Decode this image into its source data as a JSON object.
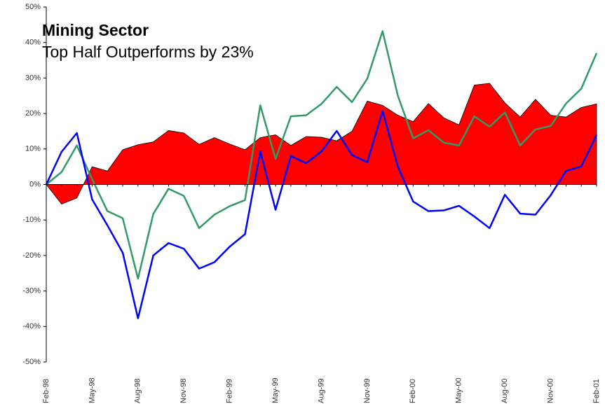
{
  "chart_data": {
    "type": "line",
    "title": "Mining Sector",
    "subtitle": "Top Half Outperforms by 23%",
    "categories": [
      "Feb-98",
      null,
      null,
      "May-98",
      null,
      null,
      "Aug-98",
      null,
      null,
      "Nov-98",
      null,
      null,
      "Feb-99",
      null,
      null,
      "May-99",
      null,
      null,
      "Aug-99",
      null,
      null,
      "Nov-99",
      null,
      null,
      "Feb-00",
      null,
      null,
      "May-00",
      null,
      null,
      "Aug-00",
      null,
      null,
      "Nov-00",
      null,
      null,
      "Feb-01"
    ],
    "series": [
      {
        "type": "area",
        "color": "#ff0000",
        "values": [
          0,
          -5.5,
          -3.8,
          5,
          3.8,
          9.8,
          11.2,
          12,
          15.2,
          14.5,
          11.3,
          13.2,
          11.4,
          9.8,
          13.2,
          14,
          11,
          13.5,
          13.3,
          12.3,
          15,
          23.5,
          22.3,
          19.5,
          17.7,
          22.8,
          18.8,
          16.8,
          28,
          28.5,
          23,
          19,
          24,
          19.5,
          19,
          21.7,
          22.7
        ]
      },
      {
        "type": "line",
        "color": "#339966",
        "values": [
          0,
          3.5,
          11,
          1.5,
          -7.5,
          -9.5,
          -26.5,
          -8.3,
          -1.2,
          -3.2,
          -12.3,
          -8.5,
          -6.1,
          -4.4,
          22.3,
          7.2,
          19.2,
          19.5,
          22.7,
          27.5,
          23.2,
          29.8,
          43.2,
          25,
          13,
          15.3,
          11.8,
          11,
          19.2,
          16.3,
          20.3,
          11,
          15.5,
          16.5,
          22.8,
          27,
          37
        ]
      },
      {
        "type": "line",
        "color": "#0000ff",
        "values": [
          0,
          9.2,
          14.5,
          -4.2,
          -11.5,
          -19.2,
          -37.7,
          -20,
          -16.5,
          -18.1,
          -23.7,
          -21.9,
          -17.5,
          -14,
          9.3,
          -7.1,
          8,
          6,
          9.3,
          15.1,
          8.3,
          6.3,
          20.7,
          5,
          -4.8,
          -7.5,
          -7.3,
          -6,
          -9,
          -12.3,
          -2.9,
          -8.2,
          -8.5,
          -3,
          3.8,
          5.1,
          14
        ]
      }
    ],
    "ylim": [
      -50,
      50
    ],
    "yticks": [
      {
        "value": -50,
        "label": "-50%"
      },
      {
        "value": -40,
        "label": "-40%"
      },
      {
        "value": -30,
        "label": "-30%"
      },
      {
        "value": -20,
        "label": "-20%"
      },
      {
        "value": -10,
        "label": "-10%"
      },
      {
        "value": 0,
        "label": "0%"
      },
      {
        "value": 10,
        "label": "10%"
      },
      {
        "value": 20,
        "label": "20%"
      },
      {
        "value": 30,
        "label": "30%"
      },
      {
        "value": 40,
        "label": "40%"
      },
      {
        "value": 50,
        "label": "50%"
      }
    ],
    "grid": false
  }
}
